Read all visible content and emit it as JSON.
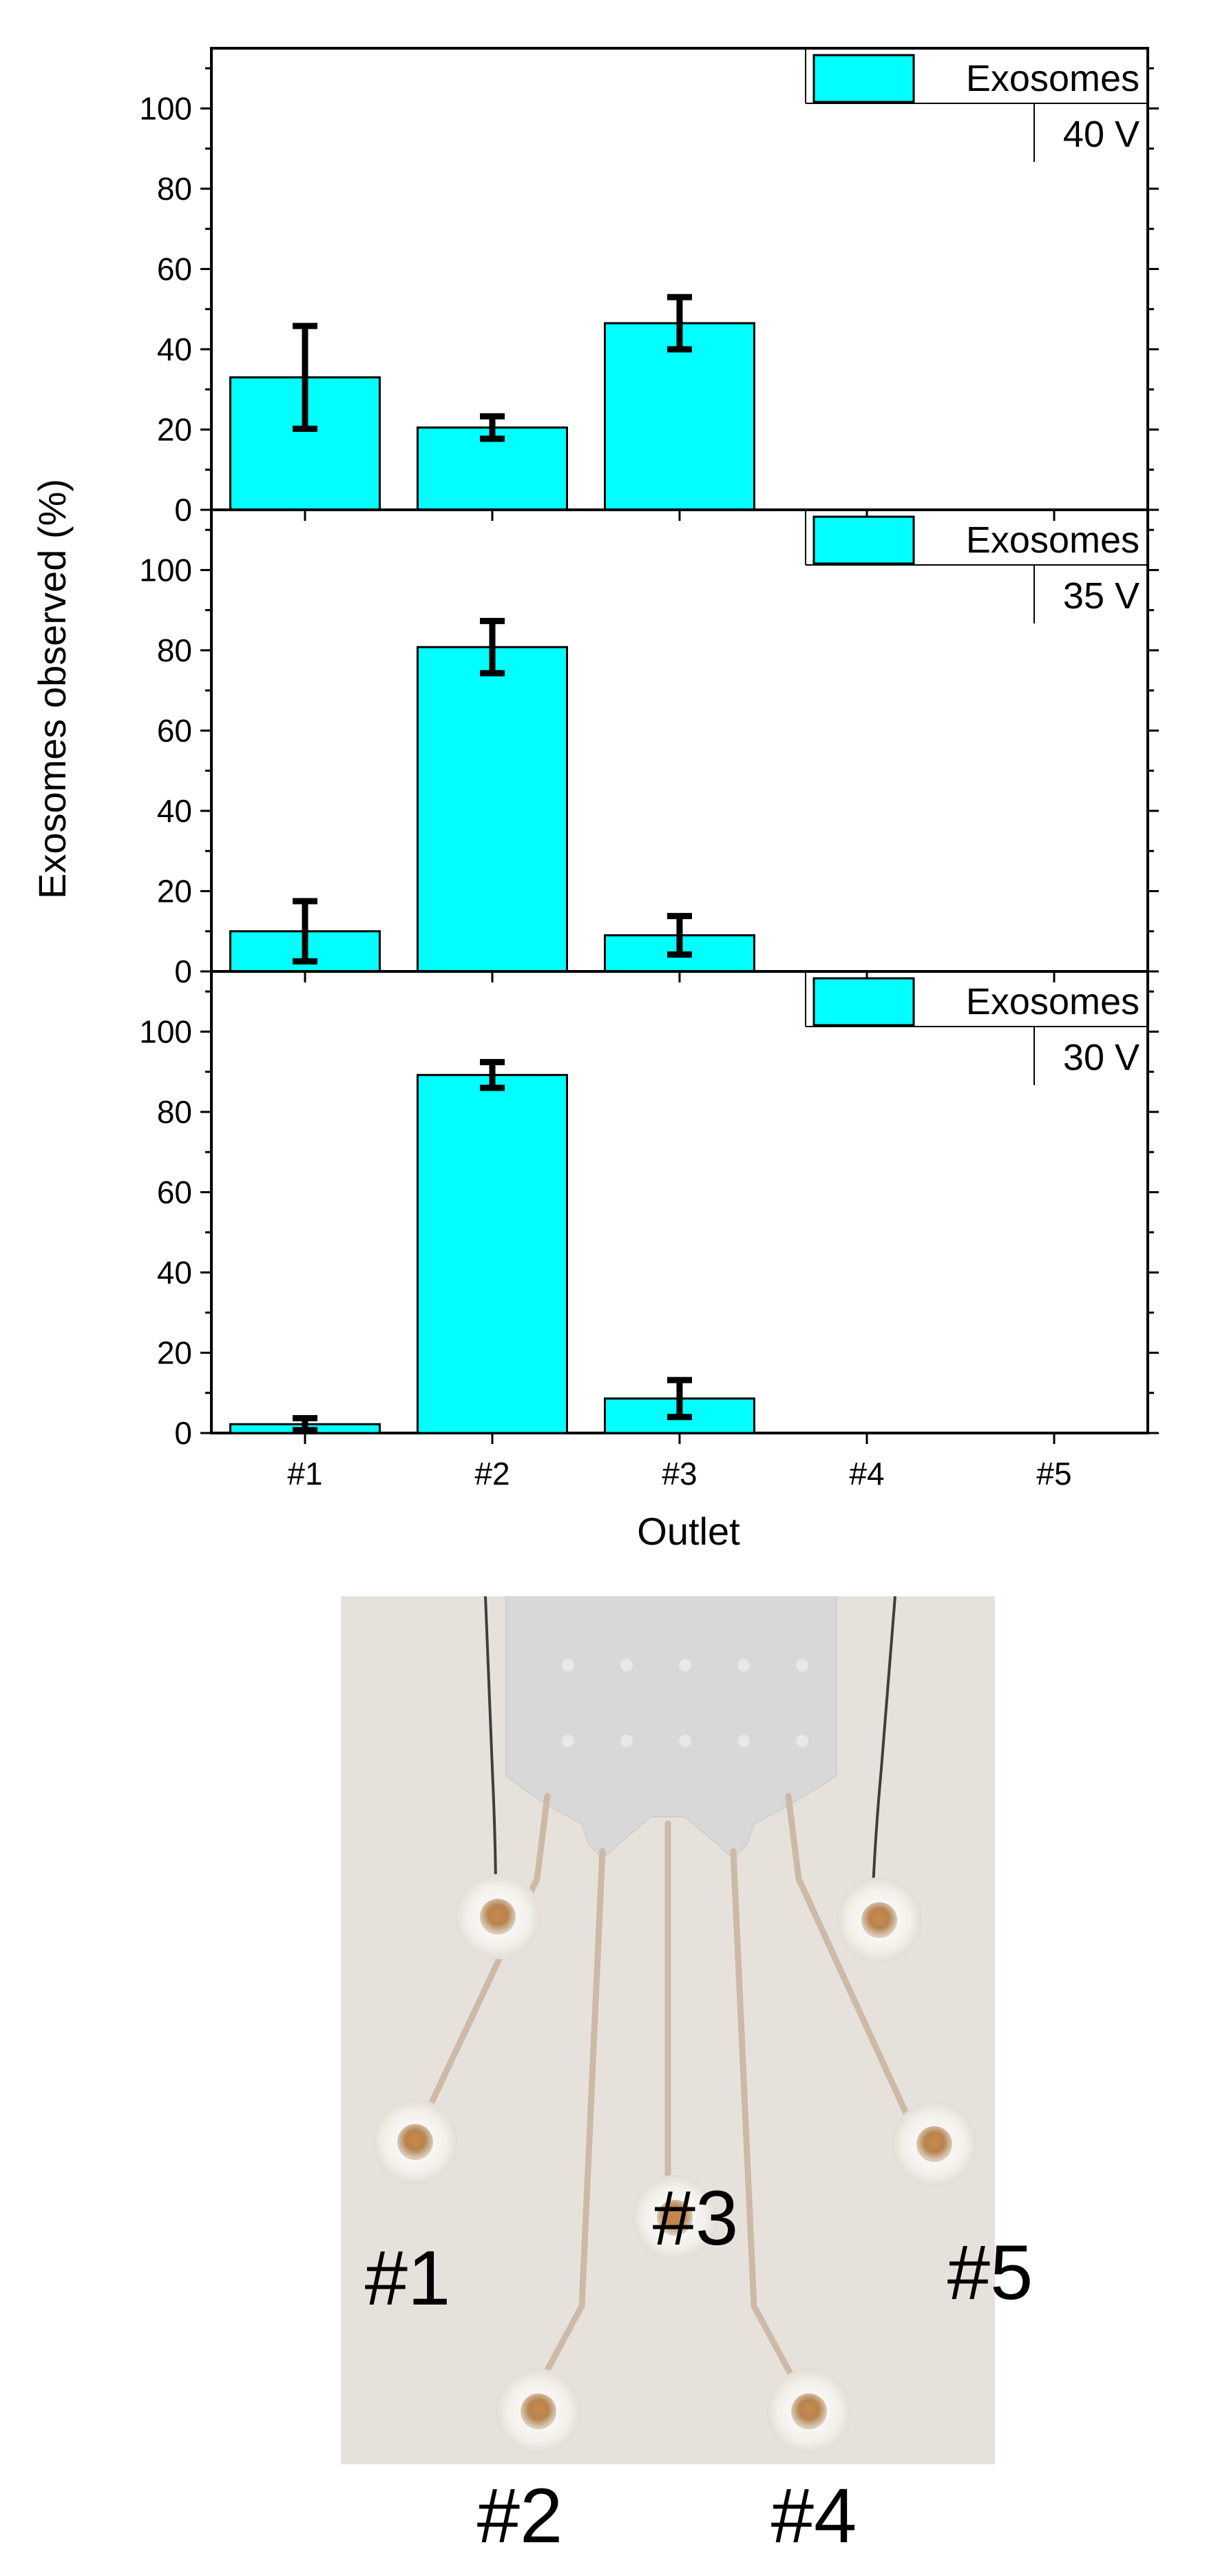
{
  "chart_data": {
    "type": "bar",
    "ylabel": "Exosomes observed (%)",
    "xlabel": "Outlet",
    "categories": [
      "#1",
      "#2",
      "#3",
      "#4",
      "#5"
    ],
    "ylim": [
      0,
      115
    ],
    "yticks": [
      0,
      20,
      40,
      60,
      80,
      100
    ],
    "legend_position": "top-right",
    "grid": false,
    "bar_color": "#00ffff",
    "panels": [
      {
        "condition": "40 V",
        "series": [
          {
            "name": "Exosomes",
            "values": [
              33,
              20.5,
              46.5,
              0,
              0
            ],
            "errors": [
              12.8,
              2.8,
              6.5,
              0,
              0
            ]
          }
        ]
      },
      {
        "condition": "35 V",
        "series": [
          {
            "name": "Exosomes",
            "values": [
              10,
              80.8,
              9,
              0,
              0
            ],
            "errors": [
              7.5,
              6.5,
              4.8,
              0,
              0
            ]
          }
        ]
      },
      {
        "condition": "30 V",
        "series": [
          {
            "name": "Exosomes",
            "values": [
              2.2,
              89.2,
              8.6,
              0,
              0
            ],
            "errors": [
              1.5,
              3.2,
              4.6,
              0,
              0
            ]
          }
        ]
      }
    ]
  },
  "photo": {
    "outlet_labels": [
      "#1",
      "#2",
      "#3",
      "#4",
      "#5"
    ]
  }
}
